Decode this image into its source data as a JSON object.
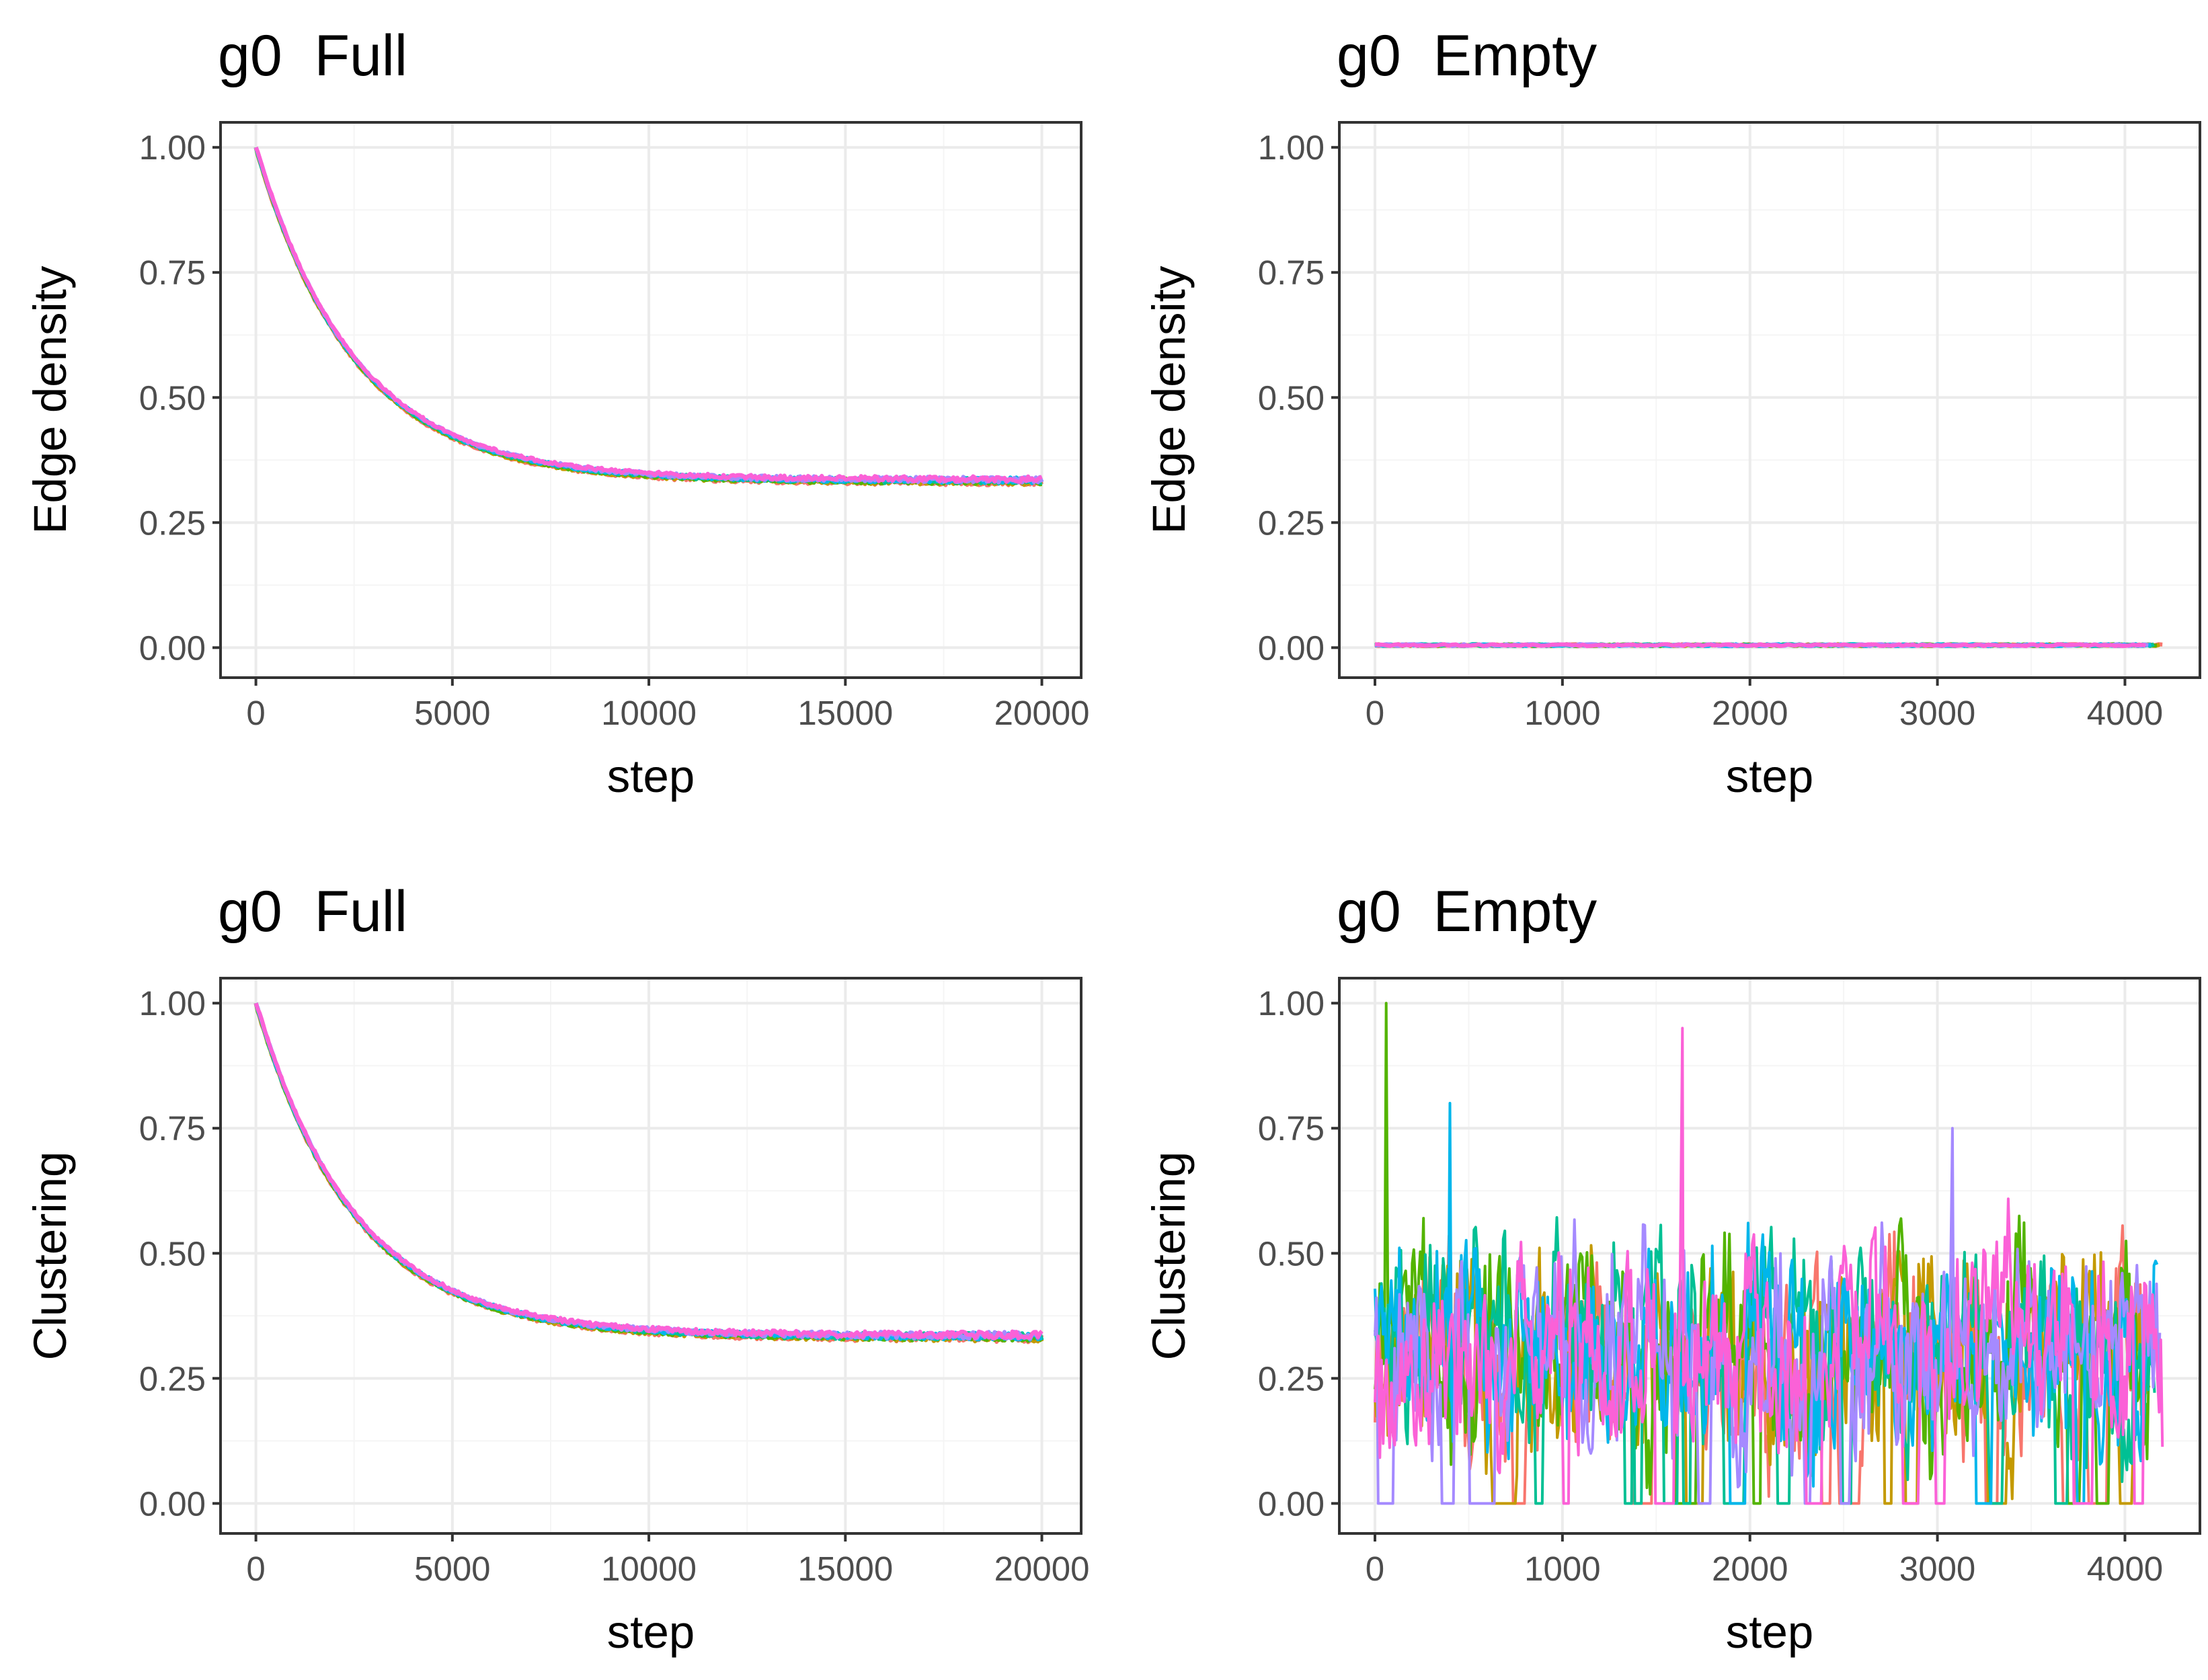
{
  "figure": {
    "layout": "2x2 grid",
    "colors": {
      "background": "#ffffff",
      "panel_border": "#333333",
      "grid_major": "#ebebeb",
      "grid_minor": "#f5f5f5",
      "axis_text": "#4d4d4d",
      "title_text": "#000000"
    },
    "series_colors": [
      "#F8766D",
      "#C49A00",
      "#53B400",
      "#00C094",
      "#00B6EB",
      "#A58AFF",
      "#FB61D7"
    ]
  },
  "chart_data": [
    {
      "type": "line",
      "title": "g0  Full",
      "xlabel": "step",
      "ylabel": "Edge density",
      "xlim": [
        -900,
        21000
      ],
      "ylim": [
        -0.06,
        1.05
      ],
      "xticks": [
        0,
        5000,
        10000,
        15000,
        20000
      ],
      "xtick_labels": [
        "0",
        "5000",
        "10000",
        "15000",
        "20000"
      ],
      "yticks": [
        0,
        0.25,
        0.5,
        0.75,
        1
      ],
      "ytick_labels": [
        "0.00",
        "0.25",
        "0.50",
        "0.75",
        "1.00"
      ],
      "legend": "none",
      "grid": true,
      "series_count": 7,
      "trend": {
        "model": "exponential_decay",
        "start": 1.0,
        "plateau": 0.333,
        "tau": 2500,
        "x_end": 20000,
        "noise": 0.004
      }
    },
    {
      "type": "line",
      "title": "g0  Empty",
      "xlabel": "step",
      "ylabel": "Edge density",
      "xlim": [
        -190,
        4400
      ],
      "ylim": [
        -0.06,
        1.05
      ],
      "xticks": [
        0,
        1000,
        2000,
        3000,
        4000
      ],
      "xtick_labels": [
        "0",
        "1000",
        "2000",
        "3000",
        "4000"
      ],
      "yticks": [
        0,
        0.25,
        0.5,
        0.75,
        1
      ],
      "ytick_labels": [
        "0.00",
        "0.25",
        "0.50",
        "0.75",
        "1.00"
      ],
      "legend": "none",
      "grid": true,
      "series_count": 7,
      "trend": {
        "model": "flat",
        "level": 0.005,
        "x_end": 4200,
        "noise": 0.002
      }
    },
    {
      "type": "line",
      "title": "g0  Full",
      "xlabel": "step",
      "ylabel": "Clustering",
      "xlim": [
        -900,
        21000
      ],
      "ylim": [
        -0.06,
        1.05
      ],
      "xticks": [
        0,
        5000,
        10000,
        15000,
        20000
      ],
      "xtick_labels": [
        "0",
        "5000",
        "10000",
        "15000",
        "20000"
      ],
      "yticks": [
        0,
        0.25,
        0.5,
        0.75,
        1
      ],
      "ytick_labels": [
        "0.00",
        "0.25",
        "0.50",
        "0.75",
        "1.00"
      ],
      "legend": "none",
      "grid": true,
      "series_count": 7,
      "trend": {
        "model": "exponential_decay",
        "start": 1.0,
        "plateau": 0.333,
        "tau": 2500,
        "x_end": 20000,
        "noise": 0.005
      }
    },
    {
      "type": "line",
      "title": "g0  Empty",
      "xlabel": "step",
      "ylabel": "Clustering",
      "xlim": [
        -190,
        4400
      ],
      "ylim": [
        -0.06,
        1.05
      ],
      "xticks": [
        0,
        1000,
        2000,
        3000,
        4000
      ],
      "xtick_labels": [
        "0",
        "1000",
        "2000",
        "3000",
        "4000"
      ],
      "yticks": [
        0,
        0.25,
        0.5,
        0.75,
        1
      ],
      "ytick_labels": [
        "0.00",
        "0.25",
        "0.50",
        "0.75",
        "1.00"
      ],
      "legend": "none",
      "grid": true,
      "series_count": 7,
      "trend": {
        "model": "noisy",
        "level": 0.3,
        "spread": 0.35,
        "x_start": 0,
        "x_end": 4200
      },
      "peaks": [
        {
          "series": 2,
          "x": 60,
          "y": 1.0
        },
        {
          "series": 6,
          "x": 1640,
          "y": 0.95
        },
        {
          "series": 4,
          "x": 400,
          "y": 0.8
        },
        {
          "series": 5,
          "x": 3080,
          "y": 0.75
        }
      ]
    }
  ]
}
